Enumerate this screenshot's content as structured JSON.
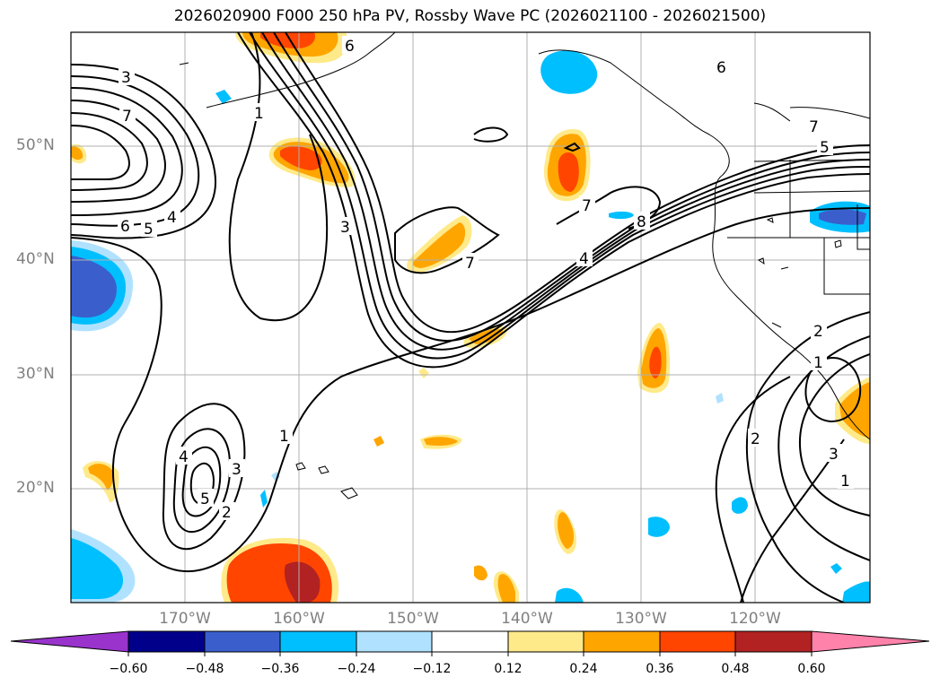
{
  "title": "2026020900 F000 250 hPa PV, Rossby Wave PC (2026021100 - 2026021500)",
  "lat_labels": [
    "50°N",
    "40°N",
    "30°N",
    "20°N"
  ],
  "lon_labels": [
    "170°W",
    "160°W",
    "150°W",
    "140°W",
    "130°W",
    "120°W"
  ],
  "colorbar": {
    "ticks": [
      "−0.60",
      "−0.48",
      "−0.36",
      "−0.24",
      "−0.12",
      "0.12",
      "0.24",
      "0.36",
      "0.48",
      "0.60"
    ],
    "colors": [
      "#9933cc",
      "#00008b",
      "#3a5fcd",
      "#00bfff",
      "#b0e2ff",
      "#ffffff",
      "#ffea8a",
      "#ffa500",
      "#ff4500",
      "#b22222",
      "#ff82ab"
    ]
  },
  "contour_labels": [
    "3",
    "7",
    "6",
    "5",
    "4",
    "1",
    "3",
    "7",
    "7",
    "8",
    "6",
    "7",
    "5",
    "4",
    "1",
    "4",
    "3",
    "2",
    "5",
    "2",
    "1",
    "2",
    "3",
    "1",
    "6"
  ],
  "map_extent": {
    "lon_min": -180,
    "lon_max": -110,
    "lat_min": 10,
    "lat_max": 60
  }
}
